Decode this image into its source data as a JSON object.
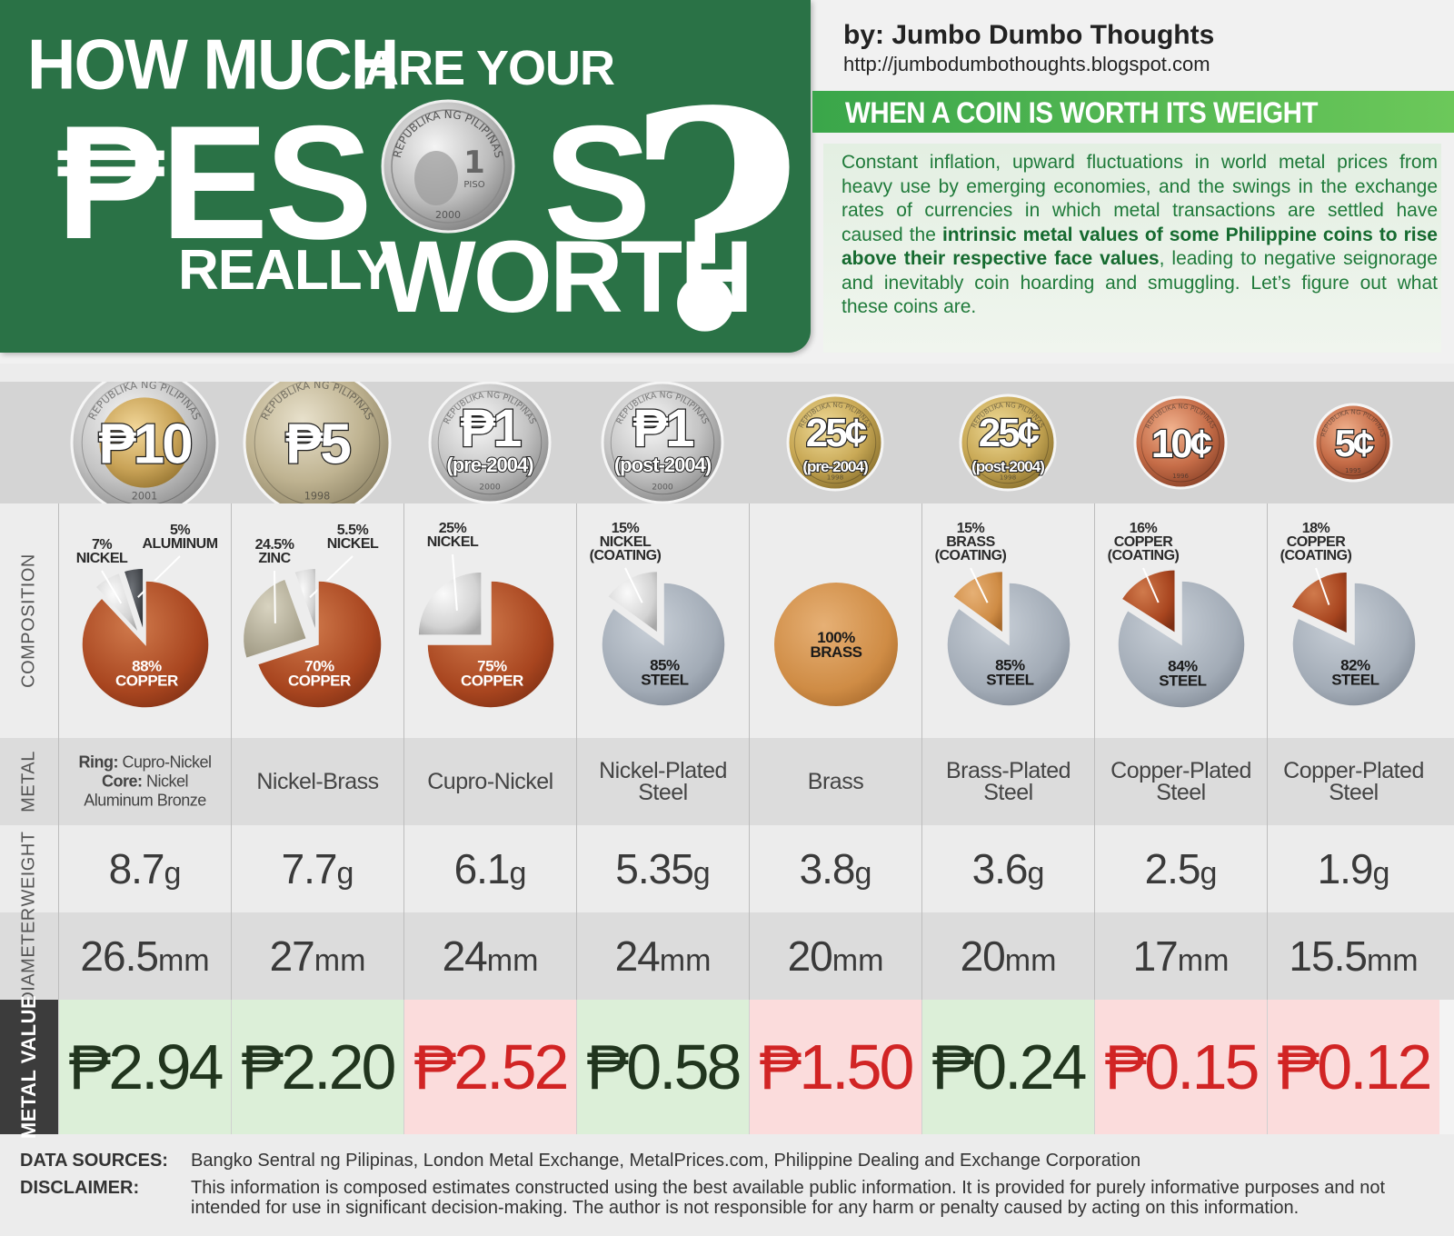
{
  "header": {
    "title_how_much": "HOW MUCH",
    "title_are_your": "ARE YOUR",
    "title_pe": "₱ES",
    "title_s": "S",
    "title_really": "REALLY",
    "title_worth": "WORTH",
    "title_q": "?",
    "coin_text": "REPUBLIKA NG PILIPINAS",
    "coin_denom": "1",
    "coin_piso": "PISO",
    "coin_year": "2000",
    "byline": "by: Jumbo Dumbo Thoughts",
    "url": "http://jumbodumbothoughts.blogspot.com",
    "tagline": "WHEN A COIN IS WORTH ITS WEIGHT",
    "intro_1": "Constant inflation, upward fluctuations in world metal prices from heavy use by emerging economies, and the swings in the exchange rates of currencies in which metal transactions are settled have caused the ",
    "intro_bold": "intrinsic metal values of some Philippine coins to rise above their respective face values",
    "intro_2": ", leading to negative seignorage and inevitably coin hoarding and smuggling. Let’s figure out what these coins are."
  },
  "row_labels": {
    "composition": "COMPOSITION",
    "metal": "METAL",
    "weight": "WEIGHT",
    "diameter": "DIAMETER",
    "metal_value": "METAL VALUE"
  },
  "colors": {
    "green": "#2a7246",
    "copper": "#b5532b",
    "nickel": "#cfcfcf",
    "aluminum": "#4d5054",
    "zinc": "#b9b39d",
    "steel": "#a9b1bb",
    "brass": "#d99a55",
    "up_text": "#21351e",
    "down_text": "#d12424",
    "up_bg": "#dcefd8",
    "down_bg": "#fbdcdc"
  },
  "chart_data": {
    "type": "table",
    "columns": [
      {
        "coin": {
          "main": "₱10",
          "sub": "",
          "rim": "REPUBLIKA NG PILIPINAS",
          "year": "2001",
          "style": "bimetal"
        },
        "composition": [
          {
            "pct": 88,
            "label1": "88%",
            "label2": "COPPER",
            "metal": "copper",
            "inside": true
          },
          {
            "pct": 7,
            "label1": "7%",
            "label2": "NICKEL",
            "metal": "nickel",
            "inside": false
          },
          {
            "pct": 5,
            "label1": "5%",
            "label2": "ALUMINUM",
            "metal": "aluminum",
            "inside": false
          }
        ],
        "metal": {
          "type": "split",
          "ring_label": "Ring:",
          "ring_value": " Cupro-Nickel",
          "core_label": "Core:",
          "core_value": " Nickel",
          "core_value2": "Aluminum Bronze"
        },
        "weight": {
          "value": "8.7",
          "unit": "g"
        },
        "diameter": {
          "value": "26.5",
          "unit": "mm"
        },
        "metal_value": "₱2.94",
        "above_face": false
      },
      {
        "coin": {
          "main": "₱5",
          "sub": "",
          "rim": "REPUBLIKA NG PILIPINAS",
          "year": "1998",
          "style": "brass-scallop"
        },
        "composition": [
          {
            "pct": 70,
            "label1": "70%",
            "label2": "COPPER",
            "metal": "copper",
            "inside": true
          },
          {
            "pct": 24.5,
            "label1": "24.5%",
            "label2": "ZINC",
            "metal": "zinc",
            "inside": false
          },
          {
            "pct": 5.5,
            "label1": "5.5%",
            "label2": "NICKEL",
            "metal": "nickel",
            "inside": false
          }
        ],
        "metal": {
          "type": "plain",
          "line1": "Nickel-Brass",
          "line2": ""
        },
        "weight": {
          "value": "7.7",
          "unit": "g"
        },
        "diameter": {
          "value": "27",
          "unit": "mm"
        },
        "metal_value": "₱2.20",
        "above_face": false
      },
      {
        "coin": {
          "main": "₱1",
          "sub": "(pre-2004)",
          "rim": "REPUBLIKA NG PILIPINAS",
          "year": "2000",
          "style": "silver"
        },
        "composition": [
          {
            "pct": 75,
            "label1": "75%",
            "label2": "COPPER",
            "metal": "copper",
            "inside": true
          },
          {
            "pct": 25,
            "label1": "25%",
            "label2": "NICKEL",
            "metal": "nickel",
            "inside": false
          }
        ],
        "metal": {
          "type": "plain",
          "line1": "Cupro-Nickel",
          "line2": ""
        },
        "weight": {
          "value": "6.1",
          "unit": "g"
        },
        "diameter": {
          "value": "24",
          "unit": "mm"
        },
        "metal_value": "₱2.52",
        "above_face": true
      },
      {
        "coin": {
          "main": "₱1",
          "sub": "(post-2004)",
          "rim": "REPUBLIKA NG PILIPINAS",
          "year": "2000",
          "style": "silver"
        },
        "composition": [
          {
            "pct": 85,
            "label1": "85%",
            "label2": "STEEL",
            "metal": "steel",
            "inside": true
          },
          {
            "pct": 15,
            "label1": "15%",
            "label2": "NICKEL",
            "label3": "(COATING)",
            "metal": "nickel",
            "inside": false
          }
        ],
        "metal": {
          "type": "plain",
          "line1": "Nickel-Plated",
          "line2": "Steel"
        },
        "weight": {
          "value": "5.35",
          "unit": "g"
        },
        "diameter": {
          "value": "24",
          "unit": "mm"
        },
        "metal_value": "₱0.58",
        "above_face": false
      },
      {
        "coin": {
          "main": "25¢",
          "sub": "(pre-2004)",
          "rim": "REPUBLIKA NG PILIPINAS",
          "year": "1998",
          "style": "brass"
        },
        "composition": [
          {
            "pct": 100,
            "label1": "100%",
            "label2": "BRASS",
            "metal": "brass",
            "inside": true
          }
        ],
        "metal": {
          "type": "plain",
          "line1": "Brass",
          "line2": ""
        },
        "weight": {
          "value": "3.8",
          "unit": "g"
        },
        "diameter": {
          "value": "20",
          "unit": "mm"
        },
        "metal_value": "₱1.50",
        "above_face": true
      },
      {
        "coin": {
          "main": "25¢",
          "sub": "(post-2004)",
          "rim": "REPUBLIKA NG PILIPINAS",
          "year": "1998",
          "style": "brass"
        },
        "composition": [
          {
            "pct": 85,
            "label1": "85%",
            "label2": "STEEL",
            "metal": "steel",
            "inside": true
          },
          {
            "pct": 15,
            "label1": "15%",
            "label2": "BRASS",
            "label3": "(COATING)",
            "metal": "brass",
            "inside": false
          }
        ],
        "metal": {
          "type": "plain",
          "line1": "Brass-Plated",
          "line2": "Steel"
        },
        "weight": {
          "value": "3.6",
          "unit": "g"
        },
        "diameter": {
          "value": "20",
          "unit": "mm"
        },
        "metal_value": "₱0.24",
        "above_face": false
      },
      {
        "coin": {
          "main": "10¢",
          "sub": "",
          "rim": "REPUBLIKA NG PILIPINAS",
          "year": "1996",
          "style": "copper"
        },
        "composition": [
          {
            "pct": 84,
            "label1": "84%",
            "label2": "STEEL",
            "metal": "steel",
            "inside": true
          },
          {
            "pct": 16,
            "label1": "16%",
            "label2": "COPPER",
            "label3": "(COATING)",
            "metal": "copper",
            "inside": false
          }
        ],
        "metal": {
          "type": "plain",
          "line1": "Copper-Plated",
          "line2": "Steel"
        },
        "weight": {
          "value": "2.5",
          "unit": "g"
        },
        "diameter": {
          "value": "17",
          "unit": "mm"
        },
        "metal_value": "₱0.15",
        "above_face": true
      },
      {
        "coin": {
          "main": "5¢",
          "sub": "",
          "rim": "REPUBLIKA NG PILIPINAS",
          "year": "1995",
          "style": "copper"
        },
        "composition": [
          {
            "pct": 82,
            "label1": "82%",
            "label2": "STEEL",
            "metal": "steel",
            "inside": true
          },
          {
            "pct": 18,
            "label1": "18%",
            "label2": "COPPER",
            "label3": "(COATING)",
            "metal": "copper",
            "inside": false
          }
        ],
        "metal": {
          "type": "plain",
          "line1": "Copper-Plated",
          "line2": "Steel"
        },
        "weight": {
          "value": "1.9",
          "unit": "g"
        },
        "diameter": {
          "value": "15.5",
          "unit": "mm"
        },
        "metal_value": "₱0.12",
        "above_face": true
      }
    ]
  },
  "footer": {
    "sources_label": "DATA SOURCES:",
    "sources_text": "Bangko Sentral ng Pilipinas, London Metal Exchange, MetalPrices.com, Philippine Dealing and Exchange Corporation",
    "disclaimer_label": "DISCLAIMER:",
    "disclaimer_text": "This information is composed estimates constructed using the best available public information. It is provided for purely informative purposes and not intended for use in significant decision-making. The author is not responsible for any harm or penalty caused by acting on this information."
  }
}
